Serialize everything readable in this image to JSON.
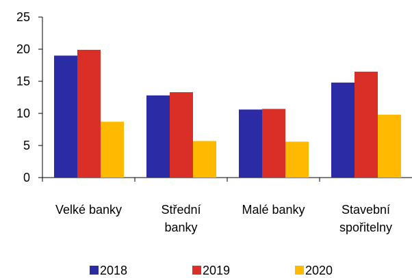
{
  "chart_data": {
    "type": "bar",
    "categories": [
      [
        "Velké banky"
      ],
      [
        "Střední",
        "banky"
      ],
      [
        "Malé banky"
      ],
      [
        "Stavební",
        "spořitelny"
      ]
    ],
    "series": [
      {
        "name": "2018",
        "values": [
          19.0,
          12.8,
          10.6,
          14.8
        ],
        "color": "#2b2ba5"
      },
      {
        "name": "2019",
        "values": [
          19.9,
          13.3,
          10.7,
          16.5
        ],
        "color": "#d92f26"
      },
      {
        "name": "2020",
        "values": [
          8.7,
          5.7,
          5.6,
          9.8
        ],
        "color": "#ffba00"
      }
    ],
    "yticks": [
      0,
      5,
      10,
      15,
      20,
      25
    ],
    "ylim": [
      0,
      25
    ],
    "grid": false,
    "legend_position": "bottom"
  }
}
